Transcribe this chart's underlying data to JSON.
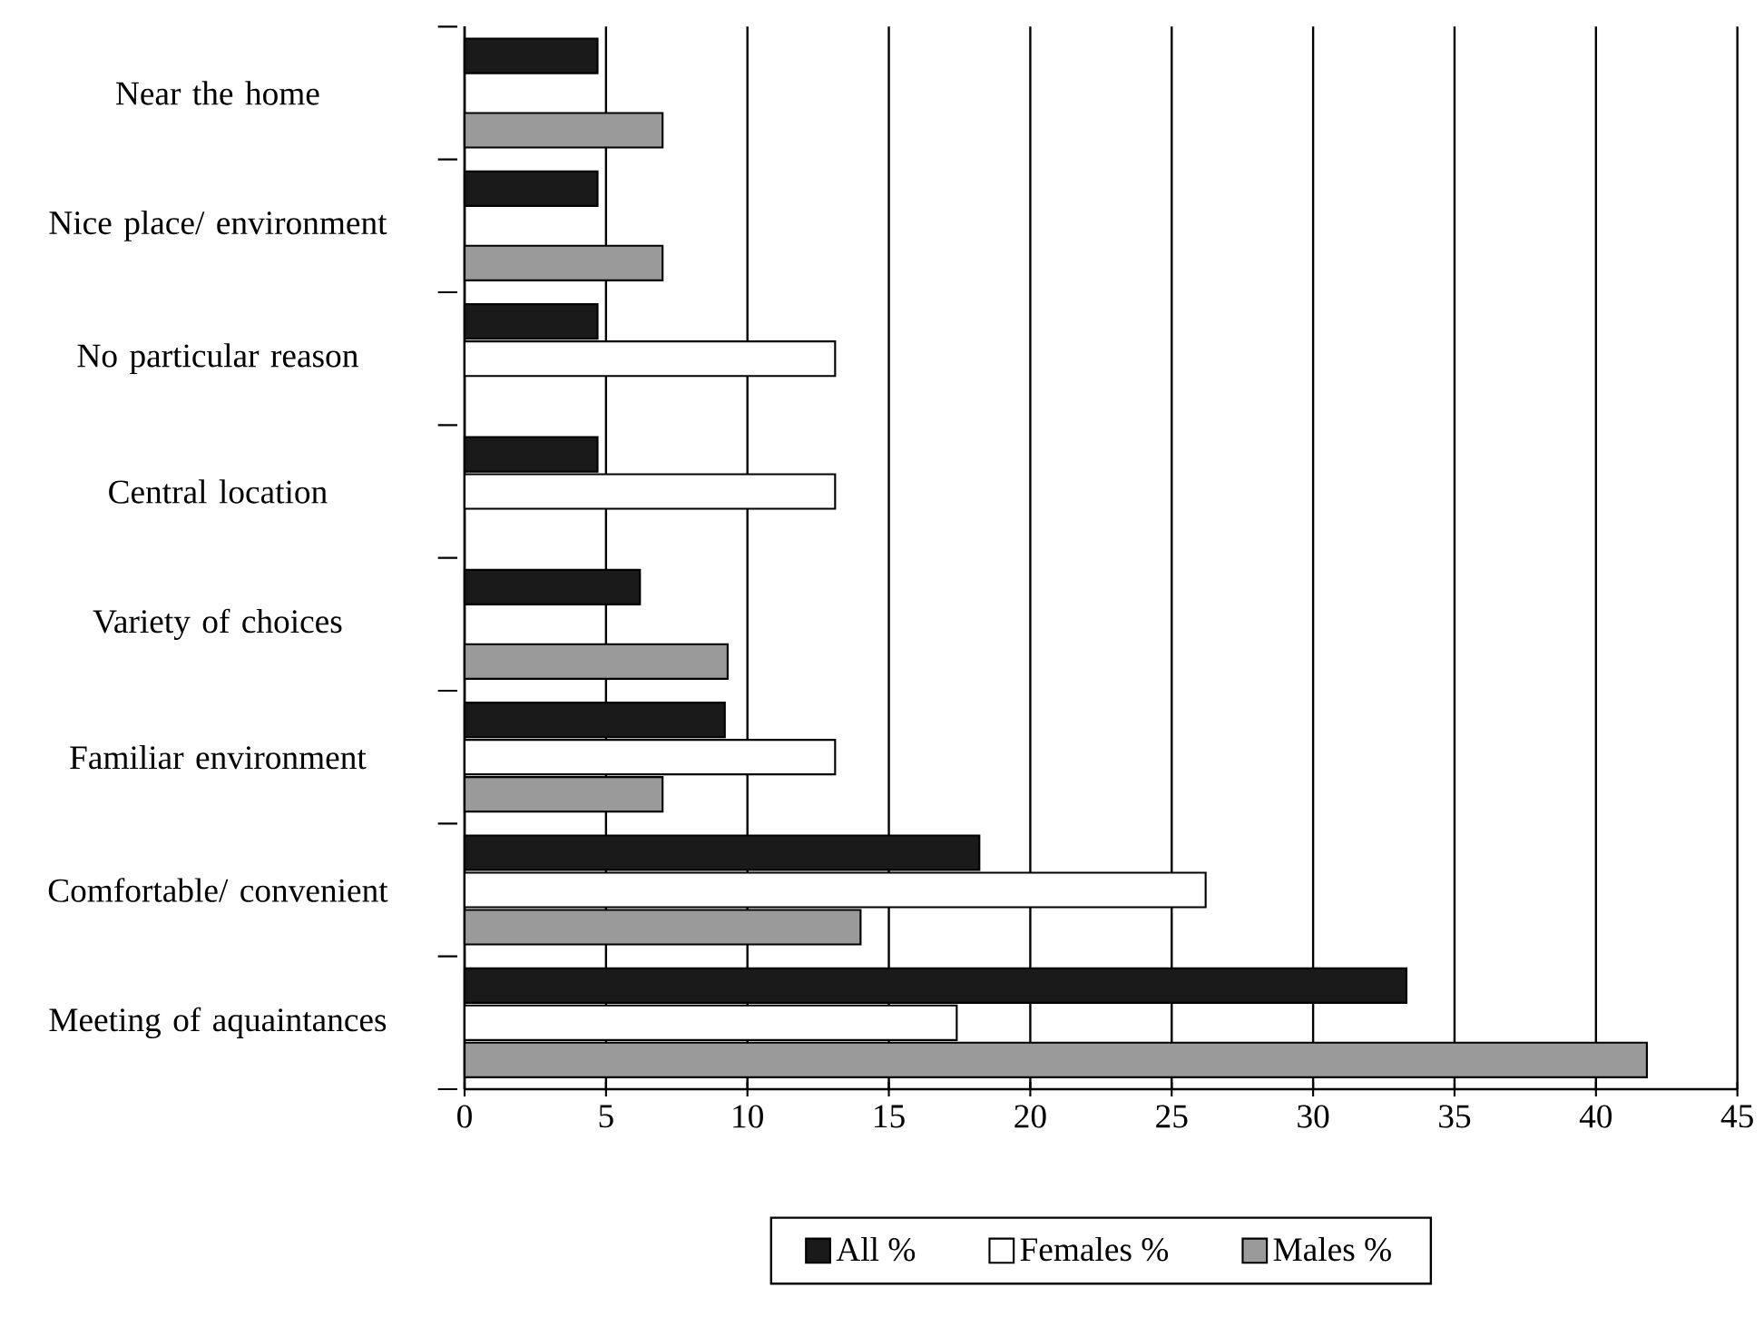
{
  "chart_data": {
    "type": "bar",
    "orientation": "horizontal",
    "categories": [
      "Near the home",
      "Nice place/ environment",
      "No particular reason",
      "Central location",
      "Variety of choices",
      "Familiar environment",
      "Comfortable/ convenient",
      "Meeting of aquaintances"
    ],
    "series": [
      {
        "name": "All %",
        "color": "#1a1a1a",
        "values": [
          4.7,
          4.7,
          4.7,
          4.7,
          6.2,
          9.2,
          18.2,
          33.3
        ]
      },
      {
        "name": "Females %",
        "color": "#ffffff",
        "values": [
          null,
          null,
          13.1,
          13.1,
          null,
          13.1,
          26.2,
          17.4
        ]
      },
      {
        "name": "Males %",
        "color": "#9a9a9a",
        "values": [
          7,
          7,
          null,
          null,
          9.3,
          7,
          14,
          41.8
        ]
      }
    ],
    "xlim": [
      0,
      45
    ],
    "xticks": [
      0,
      5,
      10,
      15,
      20,
      25,
      30,
      35,
      40,
      45
    ],
    "grid": "x",
    "legend": "bottom"
  }
}
